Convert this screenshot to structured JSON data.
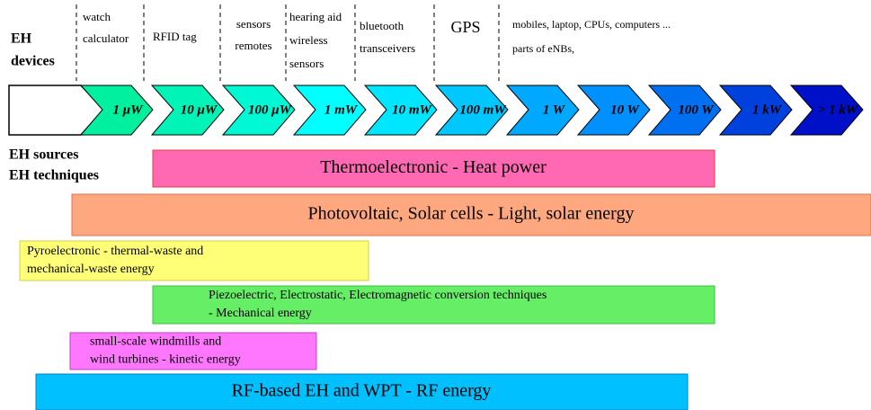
{
  "labels": {
    "devices": [
      "EH",
      "devices"
    ],
    "sources": [
      "EH sources",
      "EH techniques"
    ]
  },
  "devices": [
    {
      "lines": [
        "watch",
        "calculator"
      ]
    },
    {
      "lines": [
        "RFID tag"
      ]
    },
    {
      "lines": [
        "sensors",
        "remotes"
      ]
    },
    {
      "lines": [
        "hearing aid",
        "wireless",
        "sensors"
      ]
    },
    {
      "lines": [
        "bluetooth",
        "transceivers"
      ]
    },
    {
      "lines": [
        "GPS"
      ]
    },
    {
      "lines": [
        "mobiles, laptop, CPUs, computers ...",
        "parts of eNBs,"
      ]
    }
  ],
  "scale": [
    {
      "label": "1 μW",
      "color": "#00f0a0"
    },
    {
      "label": "10 μW",
      "color": "#00f4b8"
    },
    {
      "label": "100 μW",
      "color": "#00f8d4"
    },
    {
      "label": "1 mW",
      "color": "#00ffff"
    },
    {
      "label": "10 mW",
      "color": "#00e6ff"
    },
    {
      "label": "100 mW",
      "color": "#00c8ff"
    },
    {
      "label": "1 W",
      "color": "#00a8ff"
    },
    {
      "label": "10 W",
      "color": "#0090ff"
    },
    {
      "label": "100 W",
      "color": "#0070f0"
    },
    {
      "label": "1 kW",
      "color": "#0040dc"
    },
    {
      "label": "> 1 kW",
      "color": "#0010c8"
    }
  ],
  "techniques": [
    {
      "lines": [
        "Thermoelectronic - Heat power"
      ],
      "color": "#ff69b4"
    },
    {
      "lines": [
        "Photovoltaic, Solar cells - Light, solar energy"
      ],
      "color": "#ffa880"
    },
    {
      "lines": [
        "Pyroelectronic - thermal-waste and",
        "mechanical-waste energy"
      ],
      "color": "#ffff77"
    },
    {
      "lines": [
        "Piezoelectric, Electrostatic, Electromagnetic conversion techniques",
        "- Mechanical energy"
      ],
      "color": "#66ee66"
    },
    {
      "lines": [
        "small-scale windmills and",
        "wind turbines - kinetic energy"
      ],
      "color": "#ff77ff"
    },
    {
      "lines": [
        "RF-based EH and WPT - RF energy"
      ],
      "color": "#00c0ff"
    }
  ]
}
